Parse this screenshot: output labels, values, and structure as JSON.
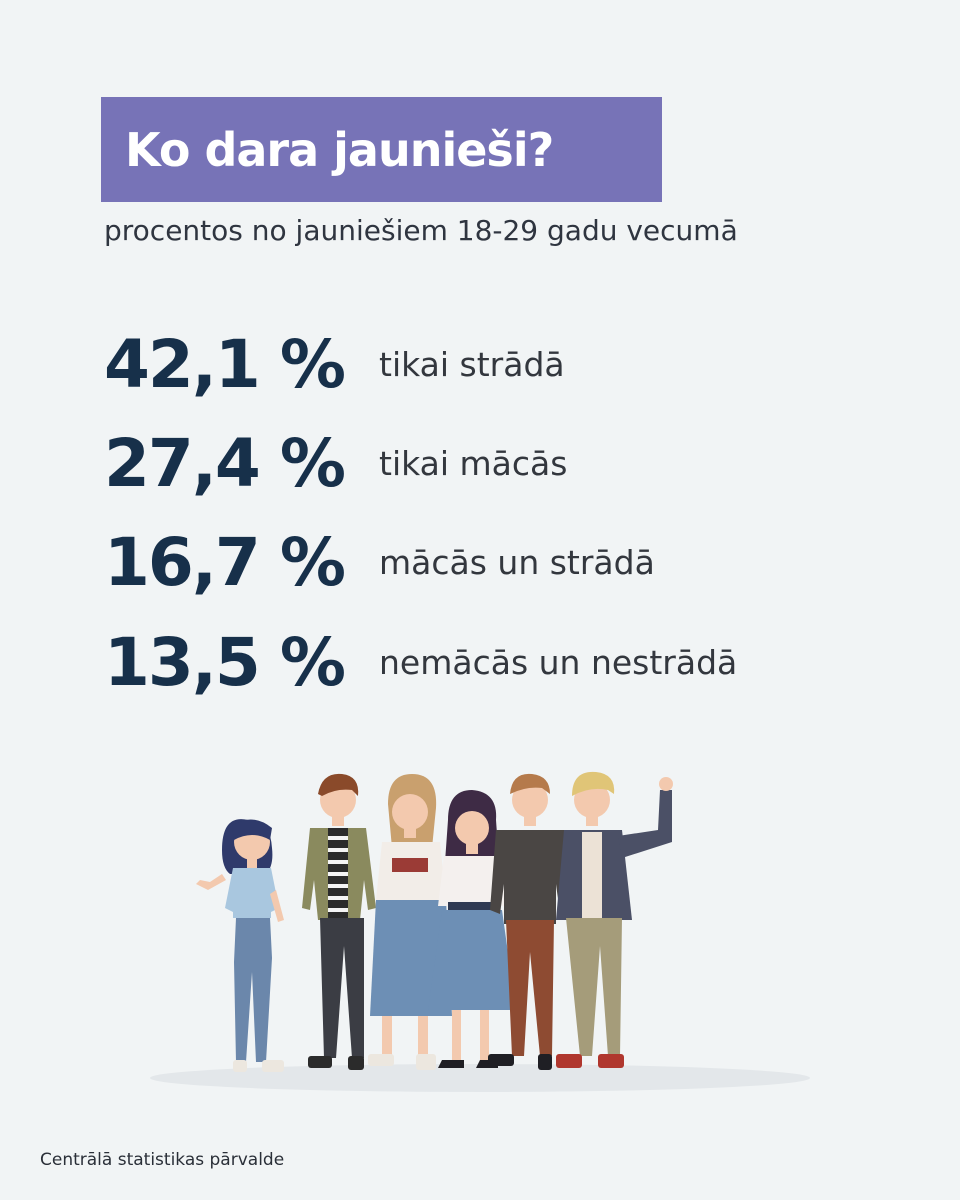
{
  "header": {
    "title": "Ko dara jaunieši?",
    "subtitle": "procentos no jauniešiem 18-29 gadu vecumā"
  },
  "stats": [
    {
      "value": "42,1 %",
      "label": "tikai strādā"
    },
    {
      "value": "27,4 %",
      "label": "tikai mācās"
    },
    {
      "value": "16,7 %",
      "label": "mācās un strādā"
    },
    {
      "value": "13,5 %",
      "label": "nemācās un nestrādā"
    }
  ],
  "illustration": {
    "icon": "group-of-young-people-illustration"
  },
  "footer": {
    "source": "Centrālā statistikas pārvalde"
  },
  "colors": {
    "background": "#f1f4f5",
    "title_box": "#7773b7",
    "title_text": "#ffffff",
    "stat_value": "#17304a",
    "stat_label": "#33373e"
  }
}
